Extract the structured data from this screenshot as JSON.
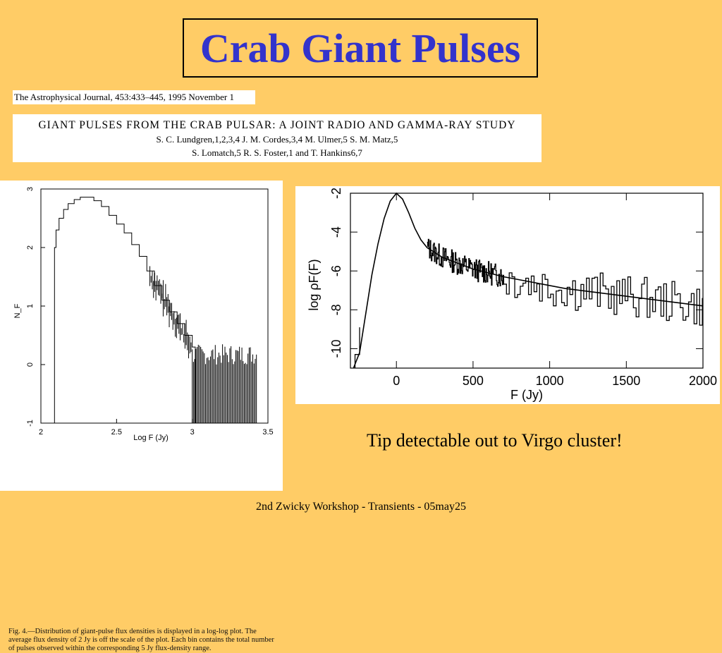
{
  "slide": {
    "title": "Crab Giant Pulses",
    "journal": "The Astrophysical Journal, 453:433–445, 1995 November 1",
    "paper_title": "GIANT PULSES FROM THE CRAB PULSAR: A JOINT RADIO AND GAMMA-RAY STUDY",
    "authors_line1": "S. C. Lundgren,1,2,3,4 J. M. Cordes,3,4 M. Ulmer,5 S. M. Matz,5",
    "authors_line2": "S. Lomatch,5 R. S. Foster,1 and T. Hankins6,7",
    "tagline": "Tip detectable out to Virgo cluster!",
    "footer": "2nd Zwicky Workshop - Transients - 05may25"
  },
  "fig4": {
    "caption": "Fig. 4.—Distribution of giant-pulse flux densities is displayed in a log-log plot. The average flux density of 2 Jy is off the scale of the plot. Each bin contains the total number of pulses observed within the corresponding 5 Jy flux-density range."
  },
  "chart_data": [
    {
      "type": "line",
      "title": "",
      "xlabel": "Log F (Jy)",
      "ylabel": "N_F",
      "xlim": [
        2,
        3.5
      ],
      "ylim": [
        -1,
        3
      ],
      "x_ticks": [
        "2",
        "2.5",
        "3",
        "3.5"
      ],
      "y_ticks": [
        "-1",
        "0",
        "1",
        "2",
        "3"
      ],
      "series": [
        {
          "x": [
            2.07,
            2.09,
            2.1,
            2.12,
            2.15,
            2.18,
            2.22,
            2.26,
            2.3,
            2.35,
            2.4,
            2.45,
            2.5,
            2.55,
            2.6,
            2.65,
            2.7,
            2.75,
            2.8,
            2.85,
            2.9,
            2.95,
            3.0,
            3.02
          ],
          "y": [
            -1,
            2.0,
            2.3,
            2.5,
            2.65,
            2.75,
            2.82,
            2.86,
            2.86,
            2.8,
            2.7,
            2.55,
            2.4,
            2.25,
            2.05,
            1.85,
            1.6,
            1.35,
            1.1,
            0.9,
            0.7,
            0.5,
            0.3,
            -1
          ]
        }
      ]
    },
    {
      "type": "line",
      "title": "",
      "xlabel": "F (Jy)",
      "ylabel": "log ρF(F)",
      "xlim": [
        -300,
        2000
      ],
      "ylim": [
        -11,
        -2
      ],
      "x_ticks": [
        "0",
        "500",
        "1000",
        "1500",
        "2000"
      ],
      "y_ticks": [
        "-2",
        "-4",
        "-6",
        "-8",
        "-10"
      ],
      "series": [
        {
          "name": "",
          "x": [
            -280,
            -240,
            -200,
            -160,
            -120,
            -80,
            -40,
            0,
            40,
            80,
            120,
            160,
            200,
            300,
            400,
            500,
            700,
            900,
            1100,
            1300,
            1500,
            1700,
            1900,
            2000
          ],
          "y": [
            -11,
            -10.2,
            -8.2,
            -6.2,
            -4.6,
            -3.3,
            -2.4,
            -2.0,
            -2.3,
            -3.0,
            -3.8,
            -4.4,
            -4.8,
            -5.3,
            -5.6,
            -5.9,
            -6.3,
            -6.6,
            -6.9,
            -7.1,
            -7.3,
            -7.5,
            -7.7,
            -7.8
          ]
        }
      ]
    }
  ]
}
